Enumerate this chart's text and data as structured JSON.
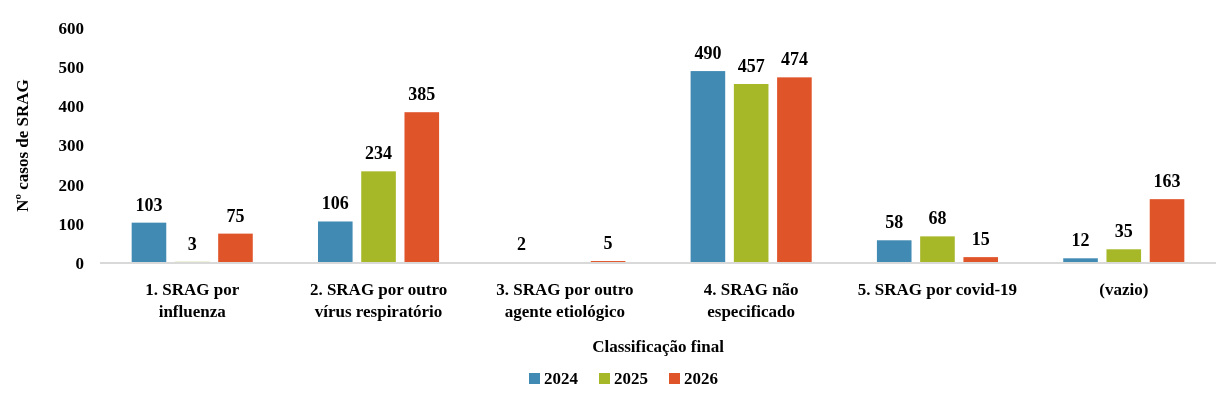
{
  "chart_data": {
    "type": "bar",
    "xlabel": "Classificação final",
    "ylabel": "Nº casos de SRAG",
    "categories": [
      "1. SRAG por influenza",
      "2. SRAG por outro vírus respiratório",
      "3. SRAG por outro agente etiológico",
      "4. SRAG não especificado",
      "5. SRAG por covid-19",
      "(vazio)"
    ],
    "series": [
      {
        "name": "2024",
        "color": "#418ab3",
        "values": [
          103,
          106,
          2,
          490,
          58,
          12
        ]
      },
      {
        "name": "2025",
        "color": "#a6b727",
        "values": [
          3,
          234,
          null,
          457,
          68,
          35
        ]
      },
      {
        "name": "2026",
        "color": "#e0542a",
        "values": [
          75,
          385,
          5,
          474,
          15,
          163
        ]
      }
    ],
    "ylim": [
      0,
      600
    ],
    "yticks": [
      0,
      100,
      200,
      300,
      400,
      500,
      600
    ],
    "grid": false,
    "legend": "bottom",
    "data_labels": true
  }
}
